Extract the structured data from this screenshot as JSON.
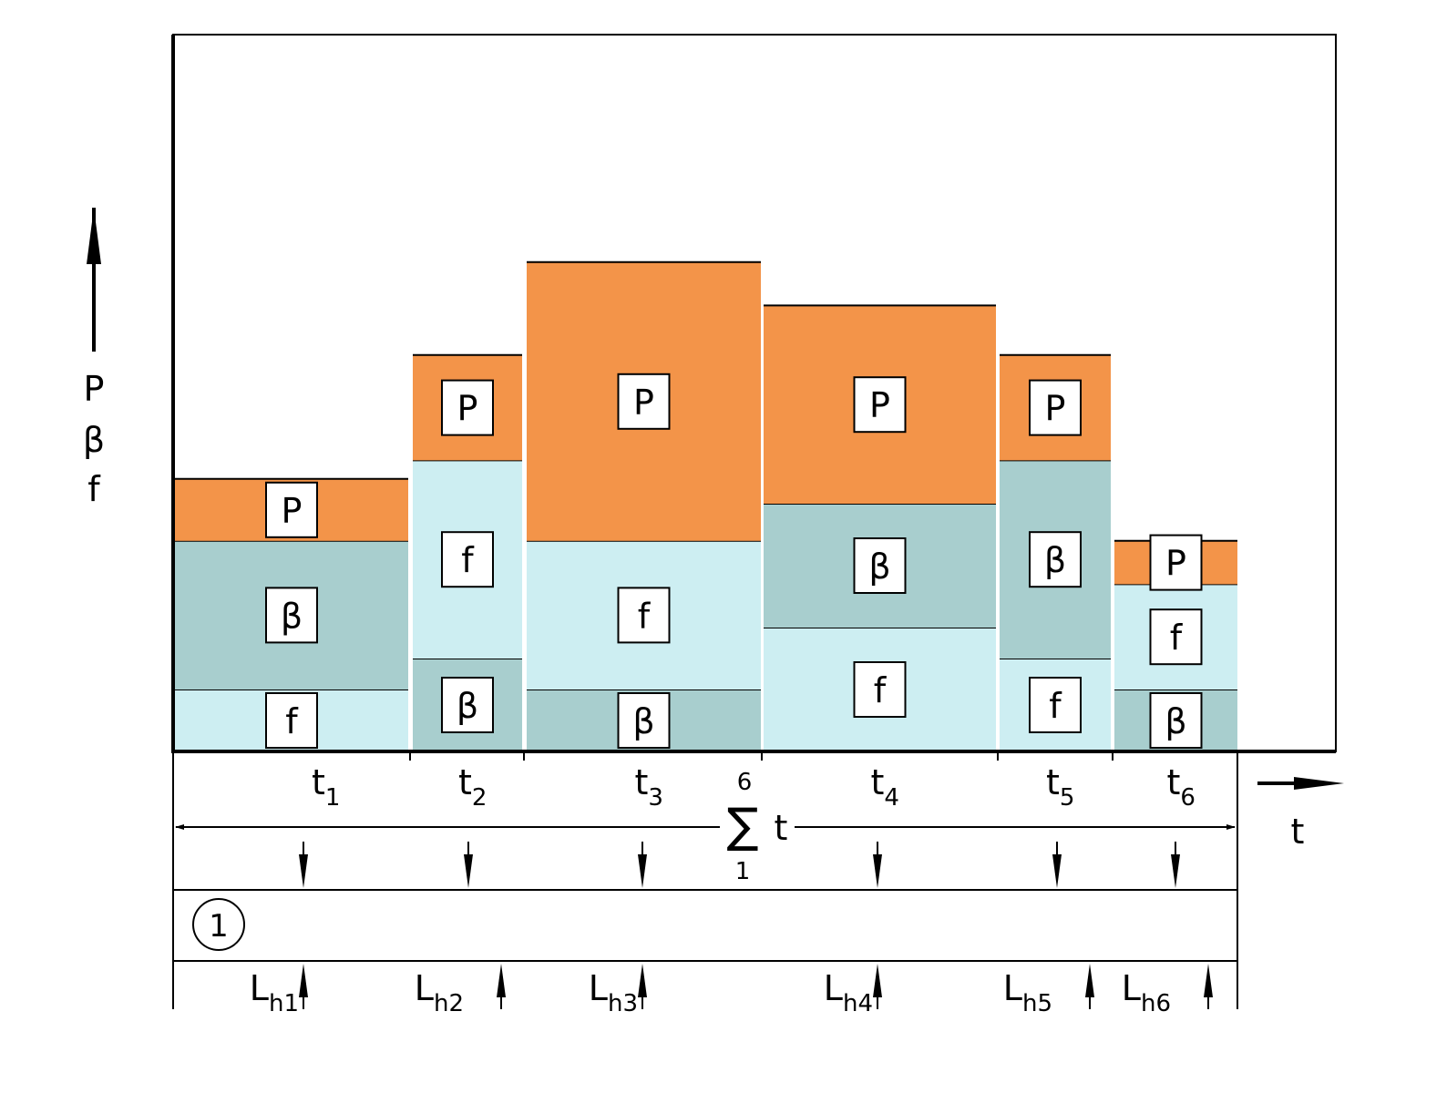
{
  "colors": {
    "P": "#F39449",
    "beta": "#A8CECE",
    "f": "#CDEEF2",
    "stroke": "#000000",
    "background": "#FFFFFF"
  },
  "y_axis_labels": [
    "P",
    "β",
    "f"
  ],
  "x_axis_label": "t",
  "symbols": {
    "P": "P",
    "beta": "β",
    "f": "f"
  },
  "periods": [
    {
      "t_base": "t",
      "t_sub": "1",
      "lh_base": "L",
      "lh_sub": "h1",
      "layers": [
        {
          "key": "f",
          "height": 1
        },
        {
          "key": "beta",
          "height": 2.4
        },
        {
          "key": "P",
          "height": 1
        }
      ]
    },
    {
      "t_base": "t",
      "t_sub": "2",
      "lh_base": "L",
      "lh_sub": "h2",
      "layers": [
        {
          "key": "beta",
          "height": 1.5
        },
        {
          "key": "f",
          "height": 3.2
        },
        {
          "key": "P",
          "height": 1.7
        }
      ]
    },
    {
      "t_base": "t",
      "t_sub": "3",
      "lh_base": "L",
      "lh_sub": "h3",
      "layers": [
        {
          "key": "beta",
          "height": 1
        },
        {
          "key": "f",
          "height": 2.4
        },
        {
          "key": "P",
          "height": 4.5
        }
      ]
    },
    {
      "t_base": "t",
      "t_sub": "4",
      "lh_base": "L",
      "lh_sub": "h4",
      "layers": [
        {
          "key": "f",
          "height": 2
        },
        {
          "key": "beta",
          "height": 2
        },
        {
          "key": "P",
          "height": 3.2
        }
      ]
    },
    {
      "t_base": "t",
      "t_sub": "5",
      "lh_base": "L",
      "lh_sub": "h5",
      "layers": [
        {
          "key": "f",
          "height": 1.5
        },
        {
          "key": "beta",
          "height": 3.2
        },
        {
          "key": "P",
          "height": 1.7
        }
      ]
    },
    {
      "t_base": "t",
      "t_sub": "6",
      "lh_base": "L",
      "lh_sub": "h6",
      "layers": [
        {
          "key": "beta",
          "height": 1
        },
        {
          "key": "f",
          "height": 1.7
        },
        {
          "key": "P",
          "height": 0.7
        }
      ]
    }
  ],
  "sum": {
    "symbol": "∑",
    "upper": "6",
    "lower": "1",
    "variable": "t"
  },
  "circle_label": "1"
}
